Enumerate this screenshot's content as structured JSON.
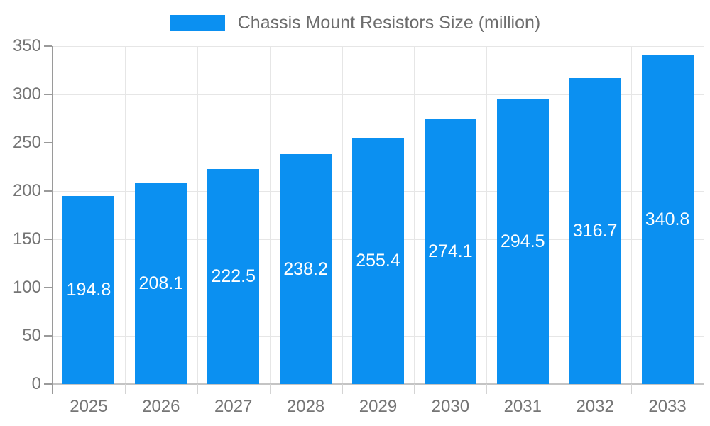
{
  "chart_data": {
    "type": "bar",
    "title": "Chassis Mount Resistors Size (million)",
    "categories": [
      "2025",
      "2026",
      "2027",
      "2028",
      "2029",
      "2030",
      "2031",
      "2032",
      "2033"
    ],
    "series": [
      {
        "name": "Chassis Mount Resistors Size (million)",
        "values": [
          194.8,
          208.1,
          222.5,
          238.2,
          255.4,
          274.1,
          294.5,
          316.7,
          340.8
        ]
      }
    ],
    "xlabel": "",
    "ylabel": "",
    "ylim": [
      0,
      350
    ],
    "yticks": [
      0,
      50,
      100,
      150,
      200,
      250,
      300,
      350
    ],
    "grid": "on",
    "legend_position": "top-center",
    "value_label_position": "inside-center",
    "colors": {
      "bar": "#0b90f1",
      "value_label": "#ffffff",
      "y_axis_line": "#9a9a9a",
      "x_axis_line": "#c4c4c4",
      "gridline": "#e6e6e6",
      "tick_label_text": "#757575",
      "legend_text": "#6d6d6d",
      "background": "#ffffff"
    }
  }
}
